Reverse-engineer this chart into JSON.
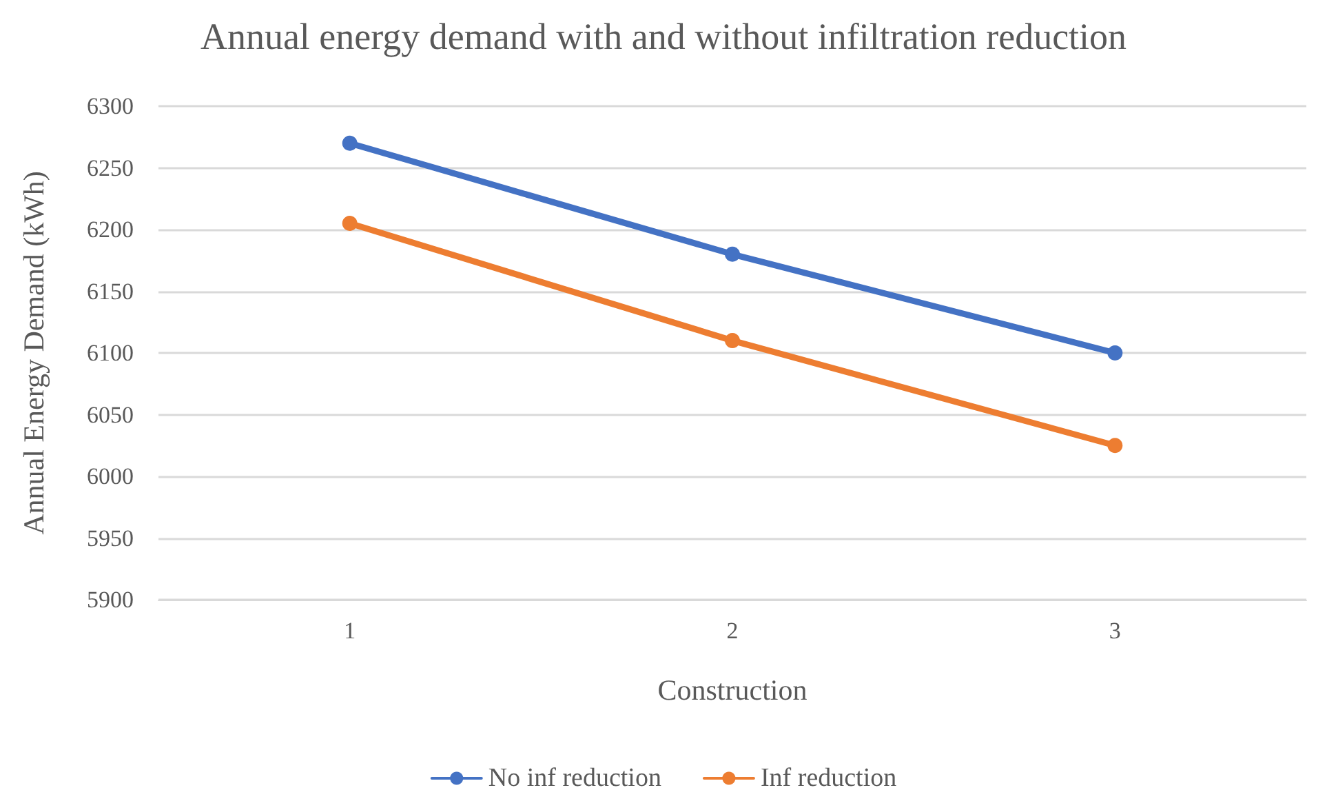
{
  "chart_data": {
    "type": "line",
    "title": "Annual energy demand with and without infiltration reduction",
    "xlabel": "Construction",
    "ylabel": "Annual Energy Demand (kWh)",
    "categories": [
      "1",
      "2",
      "3"
    ],
    "series": [
      {
        "name": "No inf reduction",
        "color": "#4472c4",
        "values": [
          6270,
          6180,
          6100
        ]
      },
      {
        "name": "Inf reduction",
        "color": "#ed7d31",
        "values": [
          6205,
          6110,
          6025
        ]
      }
    ],
    "ylim": [
      5900,
      6300
    ],
    "yticks": [
      5900,
      5950,
      6000,
      6050,
      6100,
      6150,
      6200,
      6250,
      6300
    ],
    "grid": "y",
    "legend": "bottom",
    "marker": "circle",
    "line_style": "solid"
  }
}
